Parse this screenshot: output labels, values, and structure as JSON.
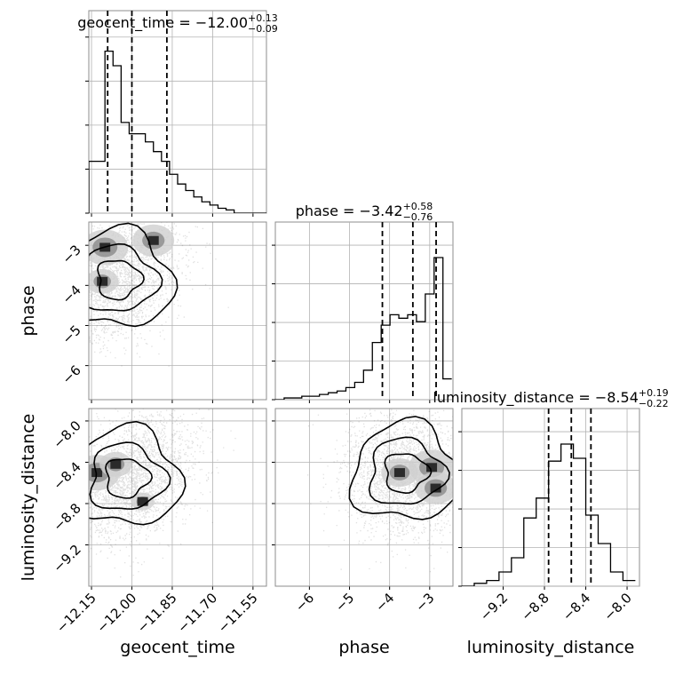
{
  "chart_data": {
    "type": "corner",
    "parameters": [
      "geocent_time",
      "phase",
      "luminosity_distance"
    ],
    "axis_labels": [
      "geocent_time",
      "phase",
      "luminosity_distance"
    ],
    "titles": [
      {
        "param": "geocent_time",
        "text": "geocent_time = −12.00",
        "plus": "+0.13",
        "minus": "−0.09"
      },
      {
        "param": "phase",
        "text": "phase = −3.42",
        "plus": "+0.58",
        "minus": "−0.76"
      },
      {
        "param": "luminosity_distance",
        "text": "luminosity_distance = −8.54",
        "plus": "+0.19",
        "minus": "−0.22"
      }
    ],
    "ranges": {
      "geocent_time": [
        -12.16,
        -11.5
      ],
      "phase": [
        -6.85,
        -2.42
      ],
      "luminosity_distance": [
        -9.6,
        -7.88
      ]
    },
    "ticks": {
      "geocent_time": [
        -12.15,
        -12.0,
        -11.85,
        -11.7,
        -11.55
      ],
      "phase": [
        -6,
        -5,
        -4,
        -3
      ],
      "luminosity_distance_y": [
        -8.0,
        -8.4,
        -8.8,
        -9.2
      ],
      "luminosity_distance_x": [
        -9.2,
        -8.8,
        -8.4,
        -8.0
      ]
    },
    "tick_labels": {
      "geocent_time": [
        "−12.15",
        "−12.00",
        "−11.85",
        "−11.70",
        "−11.55"
      ],
      "phase": [
        "−6",
        "−5",
        "−4",
        "−3"
      ],
      "luminosity_distance_y": [
        "−8.0",
        "−8.4",
        "−8.8",
        "−9.2"
      ],
      "luminosity_distance_x": [
        "−9.2",
        "−8.8",
        "−8.4",
        "−8.0"
      ]
    },
    "quantiles": {
      "geocent_time": [
        -12.09,
        -12.0,
        -11.87
      ],
      "phase": [
        -4.18,
        -3.42,
        -2.84
      ],
      "luminosity_distance": [
        -8.76,
        -8.54,
        -8.35
      ]
    },
    "histograms": {
      "geocent_time": {
        "edges": [
          -12.16,
          -12.13,
          -12.1,
          -12.07,
          -12.04,
          -12.01,
          -11.98,
          -11.95,
          -11.92,
          -11.89,
          -11.86,
          -11.83,
          -11.8,
          -11.77,
          -11.74,
          -11.71,
          -11.68,
          -11.65,
          -11.62,
          -11.59,
          -11.56,
          -11.53,
          -11.5
        ],
        "counts": [
          0.32,
          0.32,
          1.0,
          0.91,
          0.56,
          0.49,
          0.49,
          0.44,
          0.38,
          0.32,
          0.24,
          0.18,
          0.14,
          0.1,
          0.07,
          0.05,
          0.03,
          0.02,
          0.0,
          0.0,
          0.0,
          0.0
        ]
      },
      "phase": {
        "edges": [
          -6.85,
          -6.63,
          -6.41,
          -6.19,
          -5.97,
          -5.75,
          -5.53,
          -5.31,
          -5.09,
          -4.87,
          -4.65,
          -4.43,
          -4.21,
          -3.99,
          -3.77,
          -3.55,
          -3.33,
          -3.11,
          -2.89,
          -2.67,
          -2.45
        ],
        "counts": [
          0.0,
          0.01,
          0.01,
          0.02,
          0.02,
          0.03,
          0.04,
          0.05,
          0.07,
          0.1,
          0.17,
          0.33,
          0.43,
          0.49,
          0.47,
          0.49,
          0.45,
          0.61,
          0.82,
          0.12
        ]
      },
      "luminosity_distance": {
        "edges": [
          -9.6,
          -9.48,
          -9.36,
          -9.24,
          -9.12,
          -9.0,
          -8.88,
          -8.76,
          -8.64,
          -8.52,
          -8.4,
          -8.28,
          -8.16,
          -8.04,
          -7.92
        ],
        "counts": [
          0.0,
          0.02,
          0.04,
          0.1,
          0.2,
          0.48,
          0.62,
          0.88,
          1.0,
          0.9,
          0.5,
          0.3,
          0.1,
          0.04
        ]
      }
    },
    "density_2d": {
      "phase_vs_geocent_time": {
        "core": {
          "x": -12.05,
          "y": -3.85
        },
        "blobs": [
          {
            "x": -12.1,
            "y": -3.05,
            "weight": 1.0
          },
          {
            "x": -11.92,
            "y": -2.88,
            "weight": 0.9
          },
          {
            "x": -12.11,
            "y": -3.9,
            "weight": 0.7
          }
        ]
      },
      "luminosity_distance_vs_geocent_time": {
        "core": {
          "x": -12.02,
          "y": -8.55
        },
        "blobs": [
          {
            "x": -12.13,
            "y": -8.5,
            "weight": 1.0
          },
          {
            "x": -12.06,
            "y": -8.42,
            "weight": 0.7
          },
          {
            "x": -11.96,
            "y": -8.78,
            "weight": 0.5
          }
        ]
      },
      "luminosity_distance_vs_phase": {
        "core": {
          "x": -3.6,
          "y": -8.5
        },
        "blobs": [
          {
            "x": -2.95,
            "y": -8.45,
            "weight": 1.0
          },
          {
            "x": -3.75,
            "y": -8.5,
            "weight": 0.8
          },
          {
            "x": -2.85,
            "y": -8.65,
            "weight": 0.9
          }
        ]
      }
    },
    "grid": true
  }
}
